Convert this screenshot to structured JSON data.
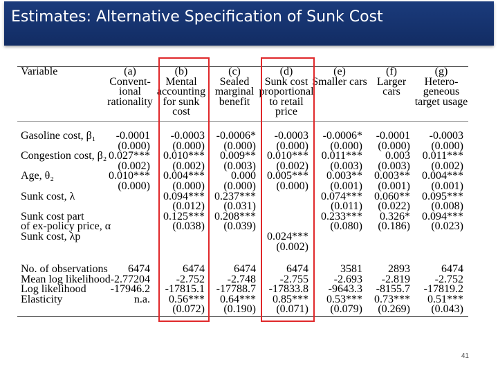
{
  "slide": {
    "title": "Estimates: Alternative Specification of Sunk Cost",
    "page_number": "41"
  },
  "table": {
    "variable_header": "Variable",
    "columns": [
      {
        "id": "a",
        "lines": [
          "(a)",
          "Convent-",
          "ional",
          "rationality"
        ]
      },
      {
        "id": "b",
        "lines": [
          "(b)",
          "Mental",
          "accounting",
          "for sunk",
          "cost"
        ]
      },
      {
        "id": "c",
        "lines": [
          "(c)",
          "Sealed",
          "marginal",
          "benefit"
        ]
      },
      {
        "id": "d",
        "lines": [
          "(d)",
          "Sunk cost",
          "proportional",
          "to retail",
          "price"
        ]
      },
      {
        "id": "e",
        "lines": [
          "(e)",
          "Smaller cars"
        ]
      },
      {
        "id": "f",
        "lines": [
          "(f)",
          "Larger",
          "cars"
        ]
      },
      {
        "id": "g",
        "lines": [
          "(g)",
          "Hetero-",
          "geneous",
          "target usage"
        ]
      }
    ],
    "rows": [
      {
        "label": "Gasoline cost, β₁",
        "values": [
          "-0.0001",
          "-0.0003",
          "-0.0006*",
          "-0.0003",
          "-0.0006*",
          "-0.0001",
          "-0.0003"
        ]
      },
      {
        "label": "",
        "values": [
          "(0.000)",
          "(0.000)",
          "(0.000)",
          "(0.000)",
          "(0.000)",
          "(0.000)",
          "(0.000)"
        ]
      },
      {
        "label": "Congestion cost, β₂",
        "values": [
          "0.027***",
          "0.010***",
          "0.009**",
          "0.010***",
          "0.011***",
          "0.003",
          "0.011***"
        ]
      },
      {
        "label": "",
        "values": [
          "(0.002)",
          "(0.002)",
          "(0.003)",
          "(0.002)",
          "(0.003)",
          "(0.003)",
          "(0.002)"
        ]
      },
      {
        "label": "Age, θ₂",
        "values": [
          "0.010***",
          "0.004***",
          "0.000",
          "0.005***",
          "0.003**",
          "0.003**",
          "0.004***"
        ]
      },
      {
        "label": "",
        "values": [
          "(0.000)",
          "(0.000)",
          "(0.000)",
          "(0.000)",
          "(0.001)",
          "(0.001)",
          "(0.001)"
        ]
      },
      {
        "label": "Sunk cost, λ",
        "values": [
          "",
          "0.094***",
          "0.237***",
          "",
          "0.074***",
          "0.060**",
          "0.095***"
        ]
      },
      {
        "label": "",
        "values": [
          "",
          "(0.012)",
          "(0.031)",
          "",
          "(0.011)",
          "(0.022)",
          "(0.008)"
        ]
      },
      {
        "label": "Sunk cost part",
        "values": [
          "",
          "0.125***",
          "0.208***",
          "",
          "0.233***",
          "0.326*",
          "0.094***"
        ]
      },
      {
        "label": "   of ex-policy price, α",
        "values": [
          "",
          "(0.038)",
          "(0.039)",
          "",
          "(0.080)",
          "(0.186)",
          "(0.023)"
        ]
      },
      {
        "label": "Sunk cost, λp",
        "values": [
          "",
          "",
          "",
          "0.024***",
          "",
          "",
          ""
        ]
      },
      {
        "label": "",
        "values": [
          "",
          "",
          "",
          "(0.002)",
          "",
          "",
          ""
        ]
      }
    ],
    "stats_rows": [
      {
        "label": "No. of observations",
        "values": [
          "6474",
          "6474",
          "6474",
          "6474",
          "3581",
          "2893",
          "6474"
        ]
      },
      {
        "label": "Mean log likelihood",
        "values": [
          "-2.77204",
          "-2.752",
          "-2.748",
          "-2.755",
          "-2.693",
          "-2.819",
          "-2.752"
        ]
      },
      {
        "label": "Log likelihood",
        "values": [
          "-17946.2",
          "-17815.1",
          "-17788.7",
          "-17833.8",
          "-9643.3",
          "-8155.7",
          "-17819.2"
        ]
      },
      {
        "label": "Elasticity",
        "values": [
          "n.a.",
          "0.56***",
          "0.64***",
          "0.85***",
          "0.53***",
          "0.73***",
          "0.51***"
        ]
      },
      {
        "label": "",
        "values": [
          "",
          "(0.072)",
          "(0.190)",
          "(0.071)",
          "(0.079)",
          "(0.269)",
          "(0.043)"
        ]
      }
    ]
  }
}
